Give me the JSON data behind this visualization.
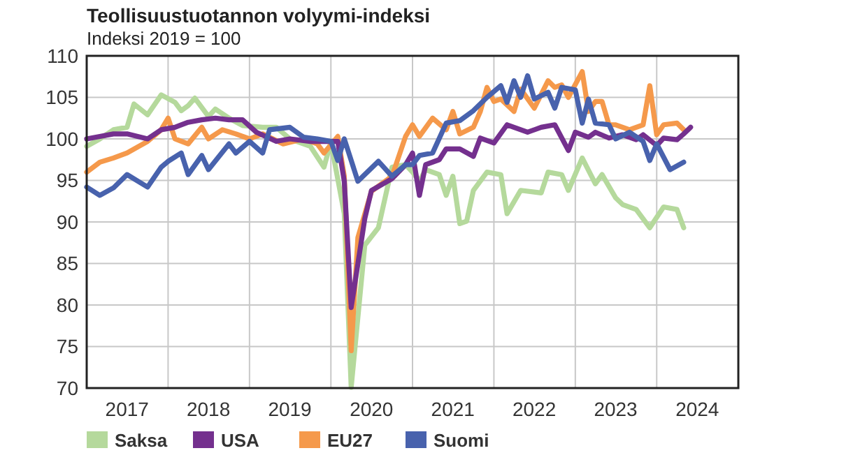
{
  "chart_data": {
    "type": "line",
    "title": "Teollisuustuotannon volyymi-indeksi",
    "subtitle": "Indeksi 2019 = 100",
    "xlim": [
      "2017-01",
      "2025-01"
    ],
    "xticks": [
      {
        "value": "2017-01",
        "label": null
      },
      {
        "value": "2017-07",
        "label": "2017"
      },
      {
        "value": "2018-01",
        "label": null
      },
      {
        "value": "2018-07",
        "label": "2018"
      },
      {
        "value": "2019-01",
        "label": null
      },
      {
        "value": "2019-07",
        "label": "2019"
      },
      {
        "value": "2020-01",
        "label": null
      },
      {
        "value": "2020-07",
        "label": "2020"
      },
      {
        "value": "2021-01",
        "label": null
      },
      {
        "value": "2021-07",
        "label": "2021"
      },
      {
        "value": "2022-01",
        "label": null
      },
      {
        "value": "2022-07",
        "label": "2022"
      },
      {
        "value": "2023-01",
        "label": null
      },
      {
        "value": "2023-07",
        "label": "2023"
      },
      {
        "value": "2024-01",
        "label": null
      },
      {
        "value": "2024-07",
        "label": "2024"
      },
      {
        "value": "2025-01",
        "label": null
      }
    ],
    "ylim": [
      70,
      110
    ],
    "yticks": [
      70,
      75,
      80,
      85,
      90,
      95,
      100,
      105,
      110
    ],
    "grid": true,
    "legend": "bottom",
    "line_style": "solid",
    "marker": "none",
    "series": [
      {
        "name": "Saksa",
        "color": "#b5d99c",
        "x": [
          "2017-01",
          "2017-03",
          "2017-05",
          "2017-07",
          "2017-08",
          "2017-10",
          "2017-12",
          "2018-02",
          "2018-03",
          "2018-04",
          "2018-05",
          "2018-07",
          "2018-08",
          "2018-10",
          "2018-12",
          "2019-03",
          "2019-05",
          "2019-07",
          "2019-10",
          "2019-12",
          "2020-01",
          "2020-03",
          "2020-04",
          "2020-06",
          "2020-08",
          "2020-10",
          "2020-12",
          "2021-01",
          "2021-02",
          "2021-03",
          "2021-05",
          "2021-06",
          "2021-07",
          "2021-08",
          "2021-09",
          "2021-10",
          "2021-12",
          "2022-02",
          "2022-03",
          "2022-05",
          "2022-08",
          "2022-09",
          "2022-11",
          "2022-12",
          "2023-02",
          "2023-04",
          "2023-05",
          "2023-07",
          "2023-08",
          "2023-10",
          "2023-12",
          "2024-02",
          "2024-04",
          "2024-05"
        ],
        "values": [
          99.1,
          100,
          101.1,
          101.4,
          104.2,
          102.9,
          105.3,
          104.4,
          103.4,
          104,
          104.9,
          102.7,
          103.6,
          102.5,
          101.6,
          101.4,
          101.4,
          100,
          99.1,
          96.6,
          99.6,
          91,
          70.1,
          87.2,
          89.3,
          96.6,
          96.9,
          96,
          94.9,
          96.3,
          95.7,
          93.2,
          95.5,
          89.8,
          90.1,
          93.8,
          96,
          95.7,
          91,
          93.8,
          93.5,
          96,
          95.7,
          93.8,
          97.7,
          94.6,
          95.7,
          92.9,
          92.1,
          91.5,
          89.3,
          91.8,
          91.5,
          89.3
        ]
      },
      {
        "name": "USA",
        "color": "#74308e",
        "x": [
          "2017-01",
          "2017-03",
          "2017-05",
          "2017-07",
          "2017-10",
          "2017-12",
          "2018-02",
          "2018-04",
          "2018-06",
          "2018-08",
          "2018-10",
          "2018-12",
          "2019-02",
          "2019-05",
          "2019-07",
          "2019-10",
          "2019-12",
          "2020-02",
          "2020-03",
          "2020-04",
          "2020-06",
          "2020-07",
          "2020-10",
          "2020-12",
          "2021-01",
          "2021-02",
          "2021-03",
          "2021-05",
          "2021-06",
          "2021-08",
          "2021-10",
          "2021-11",
          "2022-01",
          "2022-03",
          "2022-06",
          "2022-08",
          "2022-10",
          "2022-12",
          "2023-01",
          "2023-03",
          "2023-04",
          "2023-06",
          "2023-08",
          "2023-10",
          "2023-11",
          "2024-01",
          "2024-02",
          "2024-04",
          "2024-05",
          "2024-06"
        ],
        "values": [
          100,
          100.3,
          100.6,
          100.6,
          100,
          101.1,
          101.4,
          102,
          102.3,
          102.5,
          102.3,
          102.3,
          100.8,
          99.7,
          100,
          99.7,
          99.7,
          99.7,
          94.9,
          79.7,
          90.4,
          93.8,
          95.2,
          96.9,
          98.3,
          93.2,
          96.9,
          97.5,
          98.8,
          98.8,
          97.9,
          100.1,
          99.5,
          101.7,
          100.8,
          101.4,
          101.7,
          98.6,
          100.8,
          100.2,
          100.8,
          100.1,
          100.5,
          99.9,
          100.5,
          99.2,
          100.1,
          99.9,
          100.6,
          101.4
        ]
      },
      {
        "name": "EU27",
        "color": "#f5994b",
        "x": [
          "2017-01",
          "2017-03",
          "2017-05",
          "2017-07",
          "2017-10",
          "2017-12",
          "2018-01",
          "2018-02",
          "2018-04",
          "2018-06",
          "2018-07",
          "2018-09",
          "2018-11",
          "2019-01",
          "2019-03",
          "2019-06",
          "2019-09",
          "2019-11",
          "2019-12",
          "2020-02",
          "2020-03",
          "2020-04",
          "2020-05",
          "2020-07",
          "2020-10",
          "2020-12",
          "2021-01",
          "2021-02",
          "2021-04",
          "2021-06",
          "2021-07",
          "2021-08",
          "2021-10",
          "2021-11",
          "2021-12",
          "2022-01",
          "2022-02",
          "2022-04",
          "2022-05",
          "2022-07",
          "2022-09",
          "2022-10",
          "2022-11",
          "2022-12",
          "2023-02",
          "2023-03",
          "2023-04",
          "2023-05",
          "2023-06",
          "2023-07",
          "2023-09",
          "2023-11",
          "2023-12",
          "2024-01",
          "2024-02",
          "2024-04",
          "2024-05"
        ],
        "values": [
          96,
          97.2,
          97.7,
          98.3,
          99.7,
          101.1,
          102.5,
          100,
          99.4,
          101.4,
          100,
          101.1,
          100.6,
          100,
          100.6,
          99.4,
          100,
          99.4,
          98.3,
          100.3,
          95.5,
          74.5,
          88.1,
          93.7,
          95.5,
          100.3,
          101.7,
          100.3,
          102.5,
          101.1,
          103.3,
          100.6,
          101.4,
          103.3,
          106.2,
          104.5,
          104.8,
          103.3,
          106,
          103.7,
          107,
          106.2,
          106.5,
          105,
          108.1,
          103.3,
          104.5,
          104.5,
          101.7,
          101.7,
          101.1,
          101.7,
          106.4,
          100.5,
          101.7,
          101.9,
          101.1
        ]
      },
      {
        "name": "Suomi",
        "color": "#4862ad",
        "x": [
          "2017-01",
          "2017-03",
          "2017-05",
          "2017-07",
          "2017-10",
          "2017-12",
          "2018-01",
          "2018-03",
          "2018-04",
          "2018-06",
          "2018-07",
          "2018-10",
          "2018-11",
          "2019-01",
          "2019-03",
          "2019-04",
          "2019-07",
          "2019-09",
          "2019-11",
          "2020-01",
          "2020-02",
          "2020-03",
          "2020-05",
          "2020-08",
          "2020-10",
          "2020-12",
          "2021-01",
          "2021-02",
          "2021-04",
          "2021-06",
          "2021-08",
          "2021-10",
          "2021-12",
          "2022-02",
          "2022-03",
          "2022-04",
          "2022-05",
          "2022-06",
          "2022-07",
          "2022-09",
          "2022-10",
          "2022-11",
          "2023-01",
          "2023-02",
          "2023-03",
          "2023-04",
          "2023-06",
          "2023-07",
          "2023-09",
          "2023-11",
          "2023-12",
          "2024-01",
          "2024-03",
          "2024-05"
        ],
        "values": [
          94.2,
          93.2,
          94.1,
          95.7,
          94.2,
          96.6,
          97.3,
          98.3,
          95.7,
          98,
          96.3,
          99.4,
          98.3,
          99.7,
          98.3,
          101.1,
          101.4,
          100.2,
          100,
          99.7,
          97.4,
          100,
          94.9,
          97.3,
          95.5,
          96.9,
          96.9,
          98,
          98.3,
          101.9,
          102.2,
          103.4,
          105,
          106.4,
          104.4,
          107,
          105,
          107.6,
          104.8,
          105.6,
          103.7,
          106.2,
          105.9,
          101.9,
          104.8,
          101.9,
          101.7,
          100,
          100.8,
          99.7,
          97.4,
          99.4,
          96.3,
          97.2
        ]
      }
    ]
  }
}
